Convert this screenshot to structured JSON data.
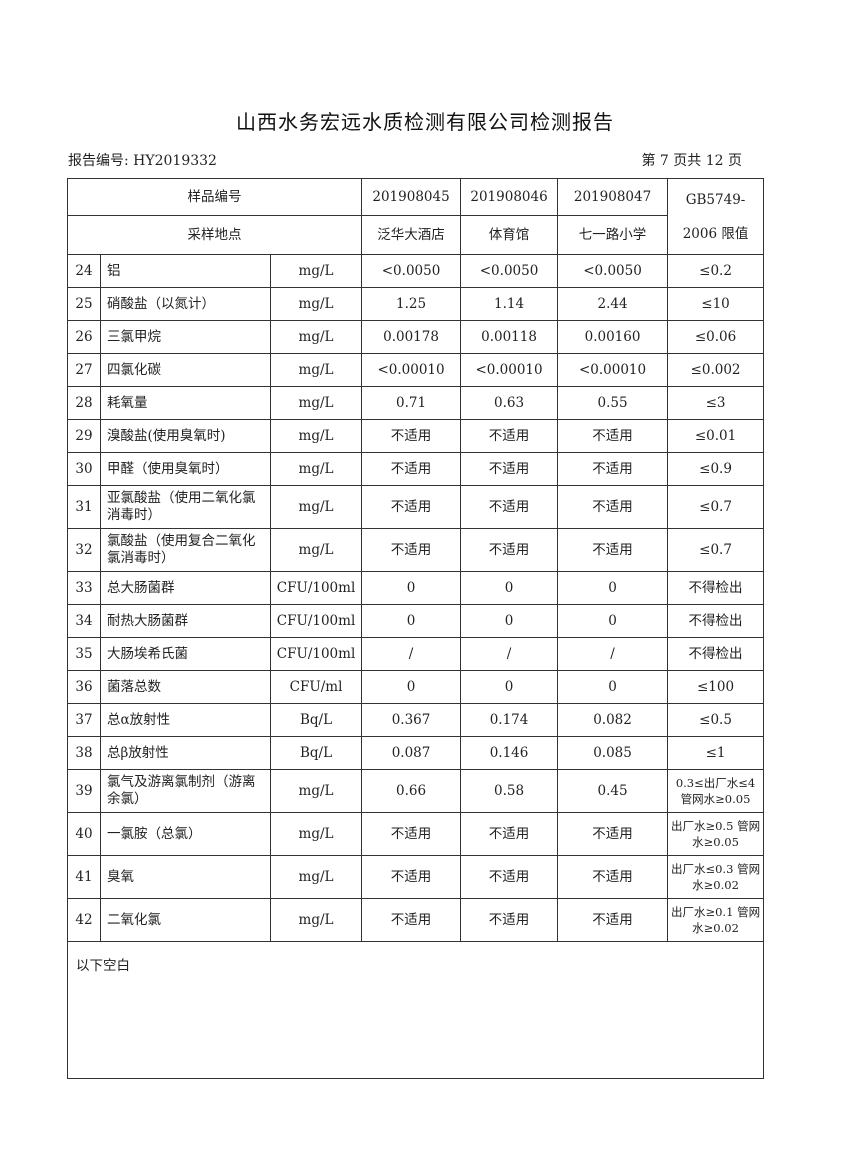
{
  "title": "山西水务宏远水质检测有限公司检测报告",
  "report_no": "报告编号: HY2019332",
  "page_no": "第 7 页共 12 页",
  "header": {
    "sample_no_label": "样品编号",
    "location_label": "采样地点",
    "samples": [
      {
        "id": "201908045",
        "location": "泛华大酒店"
      },
      {
        "id": "201908046",
        "location": "体育馆"
      },
      {
        "id": "201908047",
        "location": "七一路小学"
      }
    ],
    "limit_label": "GB5749-2006 限值"
  },
  "rows": [
    {
      "no": "24",
      "name": "铝",
      "unit": "mg/L",
      "v": [
        "<0.0050",
        "<0.0050",
        "<0.0050"
      ],
      "limit": "≤0.2"
    },
    {
      "no": "25",
      "name": "硝酸盐（以氮计）",
      "unit": "mg/L",
      "v": [
        "1.25",
        "1.14",
        "2.44"
      ],
      "limit": "≤10"
    },
    {
      "no": "26",
      "name": "三氯甲烷",
      "unit": "mg/L",
      "v": [
        "0.00178",
        "0.00118",
        "0.00160"
      ],
      "limit": "≤0.06"
    },
    {
      "no": "27",
      "name": "四氯化碳",
      "unit": "mg/L",
      "v": [
        "<0.00010",
        "<0.00010",
        "<0.00010"
      ],
      "limit": "≤0.002"
    },
    {
      "no": "28",
      "name": "耗氧量",
      "unit": "mg/L",
      "v": [
        "0.71",
        "0.63",
        "0.55"
      ],
      "limit": "≤3"
    },
    {
      "no": "29",
      "name": "溴酸盐(使用臭氧时)",
      "unit": "mg/L",
      "v": [
        "不适用",
        "不适用",
        "不适用"
      ],
      "limit": "≤0.01"
    },
    {
      "no": "30",
      "name": "甲醛（使用臭氧时）",
      "unit": "mg/L",
      "v": [
        "不适用",
        "不适用",
        "不适用"
      ],
      "limit": "≤0.9"
    },
    {
      "no": "31",
      "name": "亚氯酸盐（使用二氧化氯消毒时）",
      "unit": "mg/L",
      "v": [
        "不适用",
        "不适用",
        "不适用"
      ],
      "limit": "≤0.7",
      "tall": true
    },
    {
      "no": "32",
      "name": "氯酸盐（使用复合二氧化氯消毒时）",
      "unit": "mg/L",
      "v": [
        "不适用",
        "不适用",
        "不适用"
      ],
      "limit": "≤0.7",
      "tall": true
    },
    {
      "no": "33",
      "name": "总大肠菌群",
      "unit": "CFU/100ml",
      "v": [
        "0",
        "0",
        "0"
      ],
      "limit": "不得检出"
    },
    {
      "no": "34",
      "name": "耐热大肠菌群",
      "unit": "CFU/100ml",
      "v": [
        "0",
        "0",
        "0"
      ],
      "limit": "不得检出"
    },
    {
      "no": "35",
      "name": "大肠埃希氏菌",
      "unit": "CFU/100ml",
      "v": [
        "/",
        "/",
        "/"
      ],
      "limit": "不得检出"
    },
    {
      "no": "36",
      "name": "菌落总数",
      "unit": "CFU/ml",
      "v": [
        "0",
        "0",
        "0"
      ],
      "limit": "≤100"
    },
    {
      "no": "37",
      "name": "总α放射性",
      "unit": "Bq/L",
      "v": [
        "0.367",
        "0.174",
        "0.082"
      ],
      "limit": "≤0.5"
    },
    {
      "no": "38",
      "name": "总β放射性",
      "unit": "Bq/L",
      "v": [
        "0.087",
        "0.146",
        "0.085"
      ],
      "limit": "≤1"
    },
    {
      "no": "39",
      "name": "氯气及游离氯制剂（游离余氯）",
      "unit": "mg/L",
      "v": [
        "0.66",
        "0.58",
        "0.45"
      ],
      "limit": "0.3≤出厂水≤4 管网水≥0.05",
      "tall": true,
      "small": true
    },
    {
      "no": "40",
      "name": "一氯胺（总氯）",
      "unit": "mg/L",
      "v": [
        "不适用",
        "不适用",
        "不适用"
      ],
      "limit": "出厂水≥0.5 管网水≥0.05",
      "tall": true,
      "small": true
    },
    {
      "no": "41",
      "name": "臭氧",
      "unit": "mg/L",
      "v": [
        "不适用",
        "不适用",
        "不适用"
      ],
      "limit": "出厂水≤0.3 管网水≥0.02",
      "tall": true,
      "small": true
    },
    {
      "no": "42",
      "name": "二氧化氯",
      "unit": "mg/L",
      "v": [
        "不适用",
        "不适用",
        "不适用"
      ],
      "limit": "出厂水≥0.1 管网水≥0.02",
      "tall": true,
      "small": true
    }
  ],
  "footer_note": "以下空白"
}
